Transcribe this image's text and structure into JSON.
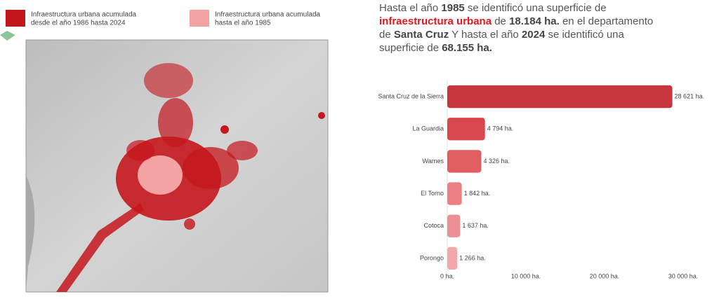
{
  "legend": [
    {
      "label_lines": [
        "Infraestructura urbana acumulada",
        "desde el año 1986 hasta 2024"
      ],
      "color": "#c3161c"
    },
    {
      "label_lines": [
        "Infraestructura urbana acumulada",
        "hasta el año 1985"
      ],
      "color": "#f4a3a3"
    }
  ],
  "description": {
    "lines": [
      [
        {
          "text": "Hasta el año ",
          "bold": false,
          "color": "#555555"
        },
        {
          "text": "1985",
          "bold": true,
          "color": "#444444"
        },
        {
          "text": " se identificó una superficie de",
          "bold": false,
          "color": "#555555"
        }
      ],
      [
        {
          "text": "infraestructura urbana",
          "bold": true,
          "color": "#e3171f"
        },
        {
          "text": " de ",
          "bold": false,
          "color": "#555555"
        },
        {
          "text": "18.184 ha.",
          "bold": true,
          "color": "#444444"
        },
        {
          "text": " en el departamento",
          "bold": false,
          "color": "#555555"
        }
      ],
      [
        {
          "text": "de ",
          "bold": false,
          "color": "#555555"
        },
        {
          "text": "Santa Cruz",
          "bold": true,
          "color": "#444444"
        },
        {
          "text": " Y hasta el año ",
          "bold": false,
          "color": "#555555"
        },
        {
          "text": "2024",
          "bold": true,
          "color": "#444444"
        },
        {
          "text": " se identificó una",
          "bold": false,
          "color": "#555555"
        }
      ],
      [
        {
          "text": "superficie de ",
          "bold": false,
          "color": "#555555"
        },
        {
          "text": "68.155 ha.",
          "bold": true,
          "color": "#444444"
        }
      ]
    ]
  },
  "chart_data": {
    "type": "hbar",
    "categories": [
      "Santa Cruz de la Sierra",
      "La Guardia",
      "Warnes",
      "El Torno",
      "Cotoca",
      "Porongo"
    ],
    "values": [
      28621,
      4794,
      4326,
      1842,
      1637,
      1266
    ],
    "value_labels": [
      "28 621 ha.",
      "4 794 ha.",
      "4 326 ha.",
      "1 842 ha.",
      "1 637 ha.",
      "1 266 ha."
    ],
    "colors": [
      "#c8363d",
      "#d9474e",
      "#e05d62",
      "#ea7e83",
      "#ee8f93",
      "#f3a7aa"
    ],
    "xlim": [
      0,
      30000
    ],
    "xticks": [
      {
        "value": 0,
        "label": "0 ha."
      },
      {
        "value": 10000,
        "label": "10 000 ha."
      },
      {
        "value": 20000,
        "label": "20 000 ha."
      },
      {
        "value": 30000,
        "label": "30 000 ha."
      }
    ],
    "grid": false
  }
}
